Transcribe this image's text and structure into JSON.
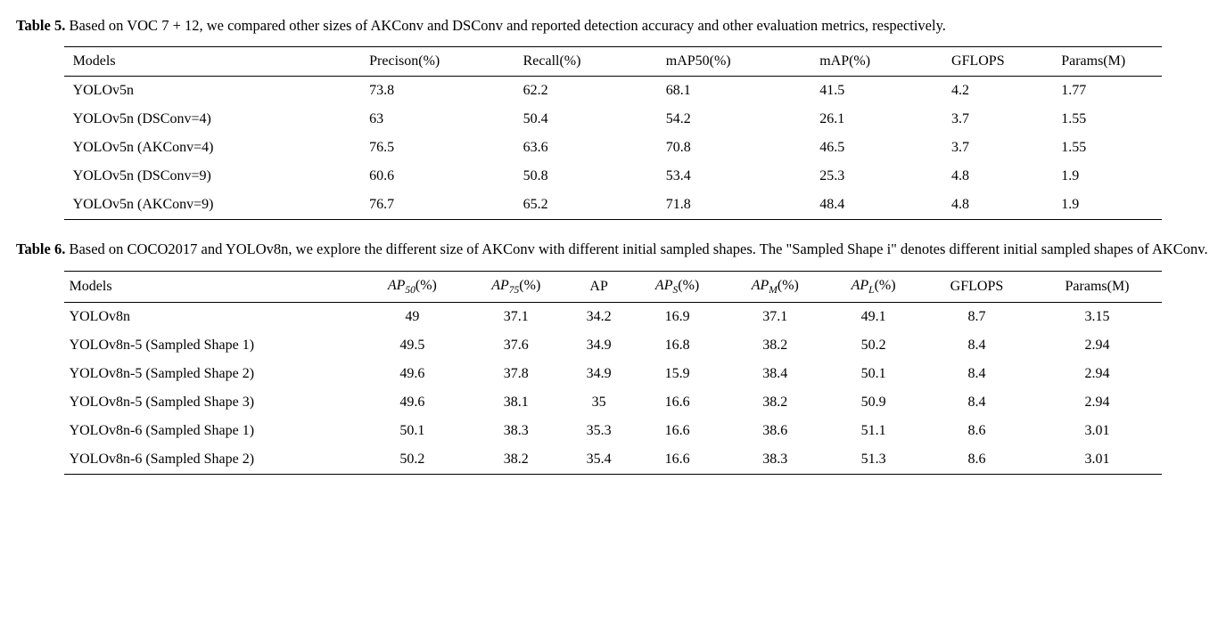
{
  "table5": {
    "caption_bold": "Table 5.",
    "caption_text": " Based on VOC 7 + 12, we compared other sizes of AKConv and DSConv and reported detection accuracy and other evaluation metrics, respectively.",
    "columns": [
      "Models",
      "Precison(%)",
      "Recall(%)",
      "mAP50(%)",
      "mAP(%)",
      "GFLOPS",
      "Params(M)"
    ],
    "rows": [
      [
        "YOLOv5n",
        "73.8",
        "62.2",
        "68.1",
        "41.5",
        "4.2",
        "1.77"
      ],
      [
        "YOLOv5n (DSConv=4)",
        "63",
        "50.4",
        "54.2",
        "26.1",
        "3.7",
        "1.55"
      ],
      [
        "YOLOv5n (AKConv=4)",
        "76.5",
        "63.6",
        "70.8",
        "46.5",
        "3.7",
        "1.55"
      ],
      [
        "YOLOv5n (DSConv=9)",
        "60.6",
        "50.8",
        "53.4",
        "25.3",
        "4.8",
        "1.9"
      ],
      [
        "YOLOv5n (AKConv=9)",
        "76.7",
        "65.2",
        "71.8",
        "48.4",
        "4.8",
        "1.9"
      ]
    ],
    "col_widths": [
      "27%",
      "14%",
      "13%",
      "14%",
      "12%",
      "10%",
      "10%"
    ]
  },
  "table6": {
    "caption_bold": "Table 6.",
    "caption_text": " Based on COCO2017 and YOLOv8n, we explore the different size of AKConv with different initial sampled shapes. The \"Sampled Shape i\" denotes different initial sampled shapes of AKConv.",
    "headers": {
      "c0": "Models",
      "c1_pre": "AP",
      "c1_sub": "50",
      "c1_post": "(%)",
      "c2_pre": "AP",
      "c2_sub": "75",
      "c2_post": "(%)",
      "c3": "AP",
      "c4_pre": "AP",
      "c4_sub": "S",
      "c4_post": "(%)",
      "c5_pre": "AP",
      "c5_sub": "M",
      "c5_post": "(%)",
      "c6_pre": "AP",
      "c6_sub": "L",
      "c6_post": "(%)",
      "c7": "GFLOPS",
      "c8": "Params(M)"
    },
    "rows": [
      [
        "YOLOv8n",
        "49",
        "37.1",
        "34.2",
        "16.9",
        "37.1",
        "49.1",
        "8.7",
        "3.15"
      ],
      [
        "YOLOv8n-5 (Sampled Shape 1)",
        "49.5",
        "37.6",
        "34.9",
        "16.8",
        "38.2",
        "50.2",
        "8.4",
        "2.94"
      ],
      [
        "YOLOv8n-5 (Sampled Shape 2)",
        "49.6",
        "37.8",
        "34.9",
        "15.9",
        "38.4",
        "50.1",
        "8.4",
        "2.94"
      ],
      [
        "YOLOv8n-5 (Sampled Shape 3)",
        "49.6",
        "38.1",
        "35",
        "16.6",
        "38.2",
        "50.9",
        "8.4",
        "2.94"
      ],
      [
        "YOLOv8n-6 (Sampled Shape 1)",
        "50.1",
        "38.3",
        "35.3",
        "16.6",
        "38.6",
        "51.1",
        "8.6",
        "3.01"
      ],
      [
        "YOLOv8n-6 (Sampled Shape 2)",
        "50.2",
        "38.2",
        "35.4",
        "16.6",
        "38.3",
        "51.3",
        "8.6",
        "3.01"
      ]
    ]
  }
}
